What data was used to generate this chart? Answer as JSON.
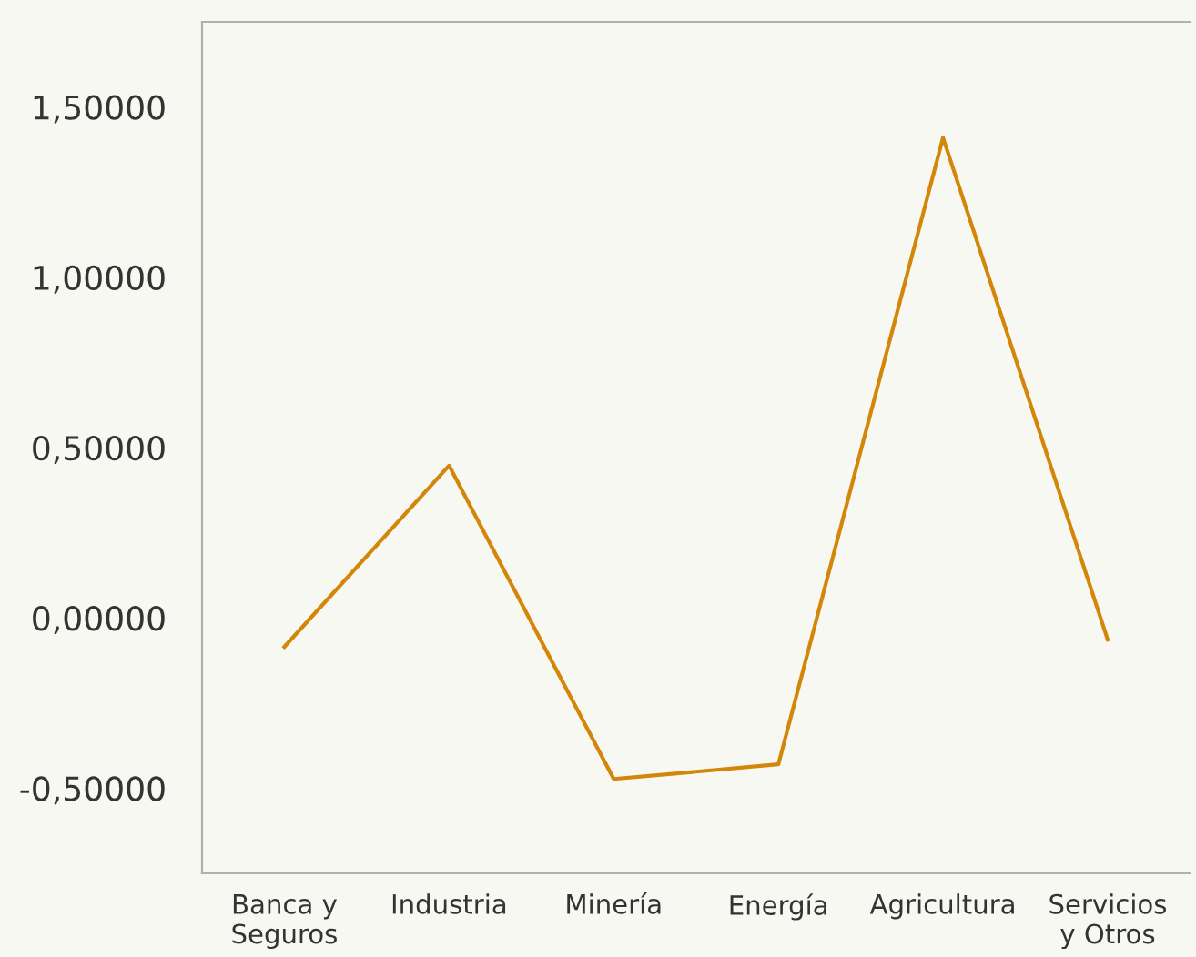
{
  "chart_data": {
    "type": "line",
    "categories": [
      "Banca y\nSeguros",
      "Industria",
      "Minería",
      "Energía",
      "Agricultura",
      "Servicios\ny Otros"
    ],
    "series": [
      {
        "color": "#d4860b",
        "values": [
          -0.085,
          0.447,
          -0.473,
          -0.43,
          1.41,
          -0.064
        ]
      }
    ],
    "ylim": [
      -0.75,
      1.75
    ],
    "yticks": [
      {
        "value": -0.5,
        "label": "-0,50000"
      },
      {
        "value": 0,
        "label": "0,00000"
      },
      {
        "value": 0.5,
        "label": "0,50000"
      },
      {
        "value": 1.0,
        "label": "1,00000"
      },
      {
        "value": 1.5,
        "label": "1,50000"
      }
    ],
    "grid": false,
    "legend": false,
    "marker": "none",
    "line_style": "solid"
  }
}
